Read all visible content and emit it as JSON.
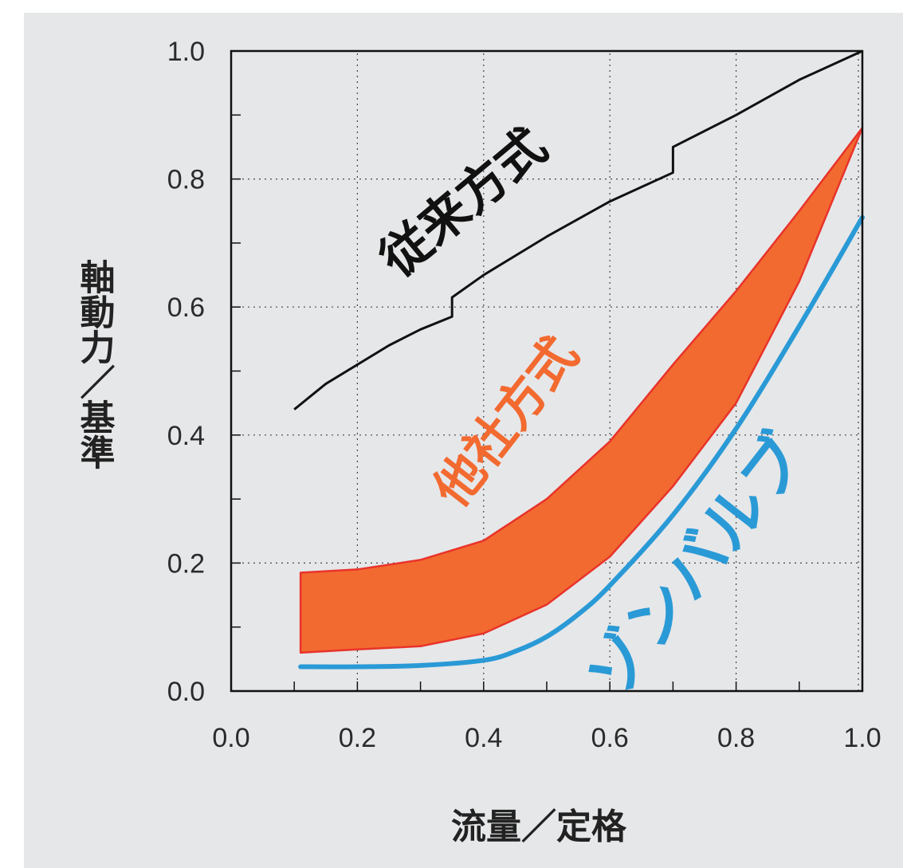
{
  "chart_data": {
    "type": "line",
    "xlabel": "流量／定格",
    "ylabel": "軸動力／基準",
    "xlim": [
      0.0,
      1.0
    ],
    "ylim": [
      0.0,
      1.0
    ],
    "x_ticks": [
      "0.0",
      "0.2",
      "0.4",
      "0.6",
      "0.8",
      "1.0"
    ],
    "y_ticks": [
      "0.0",
      "0.2",
      "0.4",
      "0.6",
      "0.8",
      "1.0"
    ],
    "grid": true,
    "series": [
      {
        "name": "従来方式",
        "color": "#111111",
        "x": [
          0.1,
          0.15,
          0.25,
          0.3,
          0.35,
          0.35,
          0.4,
          0.5,
          0.6,
          0.7,
          0.7,
          0.8,
          0.9,
          1.0
        ],
        "y": [
          0.44,
          0.48,
          0.54,
          0.565,
          0.585,
          0.615,
          0.65,
          0.71,
          0.765,
          0.81,
          0.85,
          0.9,
          0.955,
          1.0
        ]
      },
      {
        "name": "他社方式",
        "color": "#f26a30",
        "type": "area",
        "x": [
          0.11,
          0.2,
          0.3,
          0.4,
          0.5,
          0.6,
          0.7,
          0.8,
          0.9,
          1.0
        ],
        "upper": [
          0.185,
          0.19,
          0.205,
          0.235,
          0.3,
          0.39,
          0.51,
          0.625,
          0.75,
          0.88
        ],
        "lower": [
          0.06,
          0.065,
          0.07,
          0.09,
          0.135,
          0.21,
          0.32,
          0.45,
          0.64,
          0.88
        ]
      },
      {
        "name": "ゾンバルブ",
        "color": "#2a9ad6",
        "x": [
          0.11,
          0.2,
          0.3,
          0.4,
          0.45,
          0.5,
          0.55,
          0.6,
          0.7,
          0.8,
          0.9,
          1.0
        ],
        "y": [
          0.038,
          0.038,
          0.04,
          0.048,
          0.062,
          0.085,
          0.12,
          0.165,
          0.275,
          0.41,
          0.57,
          0.74
        ]
      }
    ],
    "annotations": [
      {
        "text": "従来方式",
        "color": "#111111"
      },
      {
        "text": "他社方式",
        "color": "#f26a30"
      },
      {
        "text": "ゾンバルブ",
        "color": "#2a9ad6"
      }
    ]
  }
}
